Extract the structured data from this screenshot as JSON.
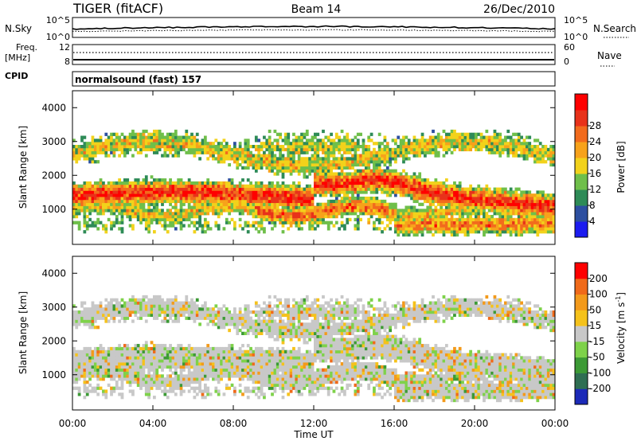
{
  "header": {
    "station": "TIGER (fitACF)",
    "beam": "Beam 14",
    "date": "26/Dec/2010"
  },
  "noise_panel": {
    "left_label": "N.Sky",
    "left_ticks": [
      "10^5",
      "10^0"
    ],
    "right_ticks": [
      "10^5",
      "10^0"
    ],
    "right_label": "N.Search"
  },
  "freq_panel": {
    "left_label_1": "Freq.",
    "left_label_2": "[MHz]",
    "left_ticks": [
      "12",
      "8"
    ],
    "right_ticks": [
      "60",
      "0"
    ],
    "right_label": "Nave"
  },
  "cpid_panel": {
    "label": "CPID",
    "value": "normalsound (fast) 157"
  },
  "colors": {
    "frame": "#000000",
    "background": "#ffffff"
  },
  "chart_data": [
    {
      "type": "heatmap",
      "name": "power",
      "ylabel": "Slant Range [km]",
      "ylim": [
        180,
        4500
      ],
      "y_ticks": [
        "1000",
        "2000",
        "3000",
        "4000"
      ],
      "xlim": [
        0,
        24
      ],
      "colorbar_label": "Power [dB]",
      "colorbar_ticks": [
        "4",
        "8",
        "12",
        "16",
        "20",
        "24",
        "28"
      ],
      "colorbar_colors": [
        "#1c1cf0",
        "#2d4fa0",
        "#2e8b57",
        "#6fbf4a",
        "#f2d21b",
        "#f7a21b",
        "#f26b1d",
        "#e8321a",
        "#ff0000"
      ]
    },
    {
      "type": "heatmap",
      "name": "velocity",
      "ylabel": "Slant Range [km]",
      "ylim": [
        180,
        4500
      ],
      "y_ticks": [
        "1000",
        "2000",
        "3000",
        "4000"
      ],
      "xlim": [
        0,
        24
      ],
      "xlabel": "Time UT",
      "x_ticks": [
        "00:00",
        "04:00",
        "08:00",
        "12:00",
        "16:00",
        "20:00",
        "00:00"
      ],
      "colorbar_label": "Velocity [m s",
      "colorbar_label_sup": "-1",
      "colorbar_label_end": "]",
      "colorbar_ticks": [
        "200",
        "100",
        "50",
        "15",
        "-15",
        "-50",
        "-100",
        "-200"
      ],
      "colorbar_colors": [
        "#1c2ab8",
        "#2f6e52",
        "#3c9a35",
        "#7ed24a",
        "#c8c8c8",
        "#f5c21b",
        "#f39a1b",
        "#f06a1a",
        "#ff0000"
      ]
    }
  ]
}
